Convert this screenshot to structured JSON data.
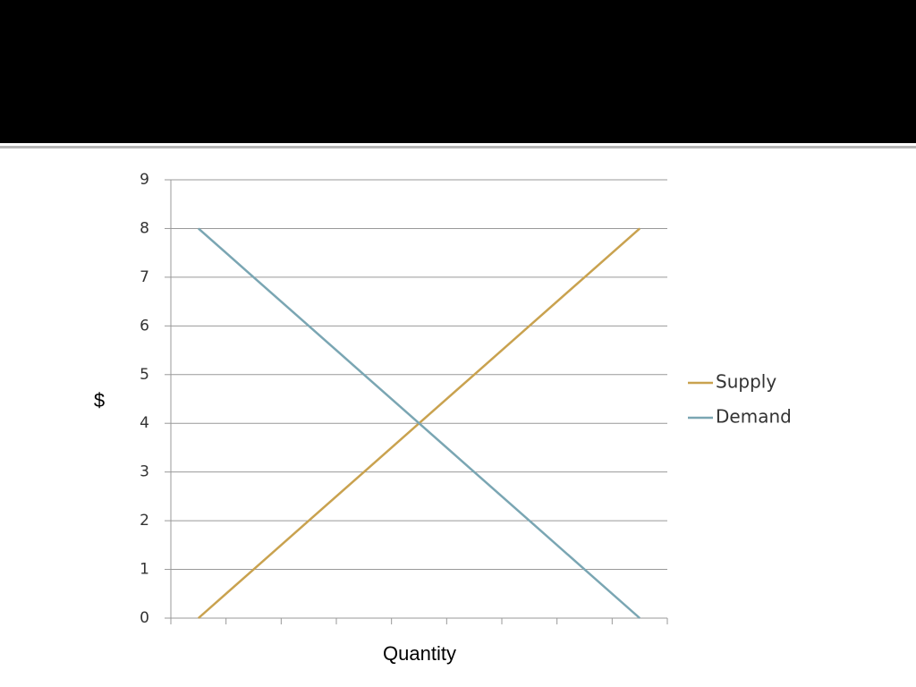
{
  "chart_data": {
    "type": "line",
    "categories": [
      null,
      null,
      null,
      null,
      null,
      null,
      null,
      null,
      null
    ],
    "series": [
      {
        "name": "Supply",
        "color": "#c9a24f",
        "values": [
          0,
          1,
          2,
          3,
          4,
          5,
          6,
          7,
          8
        ]
      },
      {
        "name": "Demand",
        "color": "#7aa6b3",
        "values": [
          8,
          7,
          6,
          5,
          4,
          3,
          2,
          1,
          0
        ]
      }
    ],
    "y_label": "$",
    "x_label": "Quantity",
    "ylim": [
      0,
      9
    ],
    "yticks": [
      0,
      1,
      2,
      3,
      4,
      5,
      6,
      7,
      8,
      9
    ],
    "grid": true,
    "legend": "right"
  }
}
